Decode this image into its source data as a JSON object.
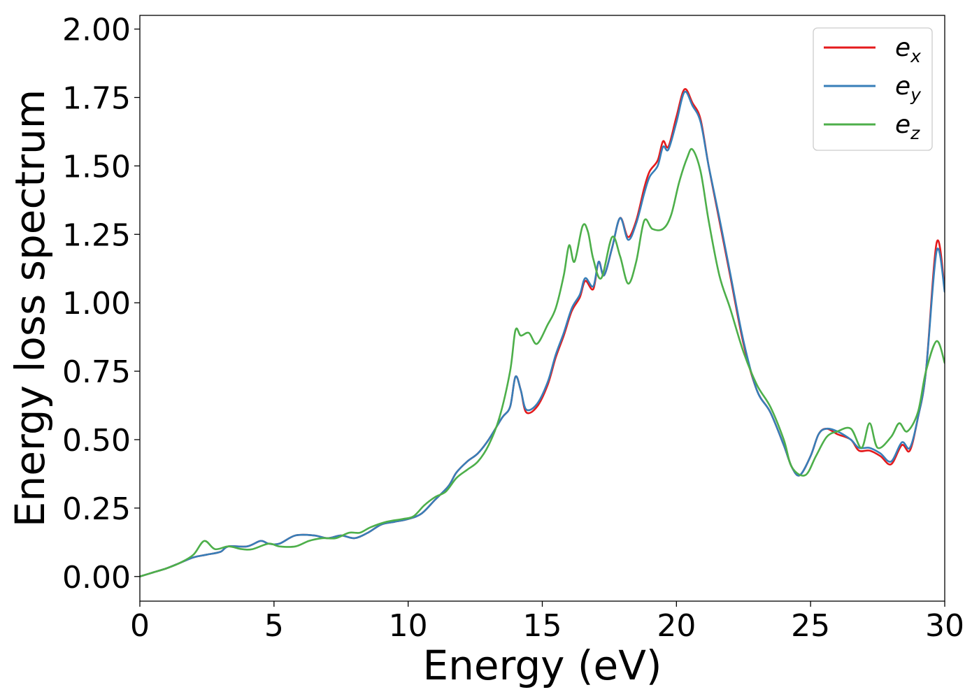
{
  "chart_data": {
    "type": "line",
    "title": "",
    "xlabel": "Energy (eV)",
    "ylabel": "Energy loss spectrum",
    "xlim": [
      0,
      30
    ],
    "ylim": [
      -0.09,
      2.05
    ],
    "x_ticks": [
      0,
      5,
      10,
      15,
      20,
      25,
      30
    ],
    "x_tick_labels": [
      "0",
      "5",
      "10",
      "15",
      "20",
      "25",
      "30"
    ],
    "y_ticks": [
      0.0,
      0.25,
      0.5,
      0.75,
      1.0,
      1.25,
      1.5,
      1.75,
      2.0
    ],
    "y_tick_labels": [
      "0.00",
      "0.25",
      "0.50",
      "0.75",
      "1.00",
      "1.25",
      "1.50",
      "1.75",
      "2.00"
    ],
    "grid": false,
    "legend_position": "top-right",
    "series": [
      {
        "name": "e_x",
        "legend_base": "e",
        "legend_sub": "x",
        "color": "#e41a1c",
        "points": [
          [
            0,
            0.0
          ],
          [
            0.5,
            0.015
          ],
          [
            1.0,
            0.03
          ],
          [
            1.5,
            0.05
          ],
          [
            2.0,
            0.07
          ],
          [
            2.5,
            0.08
          ],
          [
            3.0,
            0.09
          ],
          [
            3.3,
            0.11
          ],
          [
            4.0,
            0.11
          ],
          [
            4.5,
            0.13
          ],
          [
            4.8,
            0.12
          ],
          [
            5.2,
            0.12
          ],
          [
            5.8,
            0.15
          ],
          [
            6.5,
            0.15
          ],
          [
            7.0,
            0.14
          ],
          [
            7.5,
            0.15
          ],
          [
            8.0,
            0.14
          ],
          [
            8.5,
            0.16
          ],
          [
            9.0,
            0.19
          ],
          [
            9.5,
            0.2
          ],
          [
            10.0,
            0.21
          ],
          [
            10.5,
            0.23
          ],
          [
            11.0,
            0.28
          ],
          [
            11.5,
            0.33
          ],
          [
            11.8,
            0.38
          ],
          [
            12.2,
            0.42
          ],
          [
            12.6,
            0.45
          ],
          [
            13.0,
            0.5
          ],
          [
            13.5,
            0.58
          ],
          [
            13.8,
            0.62
          ],
          [
            14.0,
            0.73
          ],
          [
            14.2,
            0.68
          ],
          [
            14.4,
            0.6
          ],
          [
            14.8,
            0.62
          ],
          [
            15.2,
            0.7
          ],
          [
            15.5,
            0.8
          ],
          [
            15.8,
            0.88
          ],
          [
            16.1,
            0.97
          ],
          [
            16.4,
            1.02
          ],
          [
            16.6,
            1.08
          ],
          [
            16.9,
            1.05
          ],
          [
            17.1,
            1.15
          ],
          [
            17.3,
            1.1
          ],
          [
            17.6,
            1.2
          ],
          [
            17.9,
            1.31
          ],
          [
            18.2,
            1.24
          ],
          [
            18.5,
            1.3
          ],
          [
            18.8,
            1.42
          ],
          [
            19.0,
            1.48
          ],
          [
            19.3,
            1.52
          ],
          [
            19.5,
            1.59
          ],
          [
            19.7,
            1.57
          ],
          [
            20.0,
            1.68
          ],
          [
            20.3,
            1.78
          ],
          [
            20.6,
            1.73
          ],
          [
            20.9,
            1.67
          ],
          [
            21.2,
            1.5
          ],
          [
            21.6,
            1.3
          ],
          [
            22.0,
            1.1
          ],
          [
            22.5,
            0.85
          ],
          [
            23.0,
            0.68
          ],
          [
            23.5,
            0.6
          ],
          [
            24.0,
            0.48
          ],
          [
            24.3,
            0.4
          ],
          [
            24.6,
            0.37
          ],
          [
            25.0,
            0.44
          ],
          [
            25.3,
            0.52
          ],
          [
            25.6,
            0.54
          ],
          [
            26.0,
            0.52
          ],
          [
            26.5,
            0.5
          ],
          [
            26.8,
            0.46
          ],
          [
            27.2,
            0.46
          ],
          [
            27.6,
            0.44
          ],
          [
            28.0,
            0.41
          ],
          [
            28.4,
            0.48
          ],
          [
            28.7,
            0.46
          ],
          [
            29.0,
            0.58
          ],
          [
            29.3,
            0.75
          ],
          [
            29.7,
            1.22
          ],
          [
            30.0,
            1.05
          ]
        ]
      },
      {
        "name": "e_y",
        "legend_base": "e",
        "legend_sub": "y",
        "color": "#377eb8",
        "points": [
          [
            0,
            0.0
          ],
          [
            0.5,
            0.015
          ],
          [
            1.0,
            0.03
          ],
          [
            1.5,
            0.05
          ],
          [
            2.0,
            0.07
          ],
          [
            2.5,
            0.08
          ],
          [
            3.0,
            0.09
          ],
          [
            3.3,
            0.11
          ],
          [
            4.0,
            0.11
          ],
          [
            4.5,
            0.13
          ],
          [
            4.8,
            0.12
          ],
          [
            5.2,
            0.12
          ],
          [
            5.8,
            0.15
          ],
          [
            6.5,
            0.15
          ],
          [
            7.0,
            0.14
          ],
          [
            7.5,
            0.15
          ],
          [
            8.0,
            0.14
          ],
          [
            8.5,
            0.16
          ],
          [
            9.0,
            0.19
          ],
          [
            9.5,
            0.2
          ],
          [
            10.0,
            0.21
          ],
          [
            10.5,
            0.23
          ],
          [
            11.0,
            0.28
          ],
          [
            11.5,
            0.33
          ],
          [
            11.8,
            0.38
          ],
          [
            12.2,
            0.42
          ],
          [
            12.6,
            0.45
          ],
          [
            13.0,
            0.5
          ],
          [
            13.5,
            0.58
          ],
          [
            13.8,
            0.62
          ],
          [
            14.0,
            0.73
          ],
          [
            14.2,
            0.68
          ],
          [
            14.4,
            0.61
          ],
          [
            14.8,
            0.63
          ],
          [
            15.2,
            0.71
          ],
          [
            15.5,
            0.81
          ],
          [
            15.8,
            0.89
          ],
          [
            16.1,
            0.98
          ],
          [
            16.4,
            1.03
          ],
          [
            16.6,
            1.09
          ],
          [
            16.9,
            1.06
          ],
          [
            17.1,
            1.15
          ],
          [
            17.3,
            1.1
          ],
          [
            17.6,
            1.2
          ],
          [
            17.9,
            1.31
          ],
          [
            18.2,
            1.23
          ],
          [
            18.5,
            1.29
          ],
          [
            18.8,
            1.4
          ],
          [
            19.0,
            1.46
          ],
          [
            19.3,
            1.5
          ],
          [
            19.5,
            1.57
          ],
          [
            19.7,
            1.56
          ],
          [
            20.0,
            1.66
          ],
          [
            20.3,
            1.77
          ],
          [
            20.6,
            1.72
          ],
          [
            20.9,
            1.66
          ],
          [
            21.2,
            1.5
          ],
          [
            21.6,
            1.31
          ],
          [
            22.0,
            1.11
          ],
          [
            22.5,
            0.86
          ],
          [
            23.0,
            0.68
          ],
          [
            23.5,
            0.6
          ],
          [
            24.0,
            0.48
          ],
          [
            24.3,
            0.4
          ],
          [
            24.6,
            0.37
          ],
          [
            25.0,
            0.44
          ],
          [
            25.3,
            0.52
          ],
          [
            25.6,
            0.54
          ],
          [
            26.0,
            0.53
          ],
          [
            26.5,
            0.5
          ],
          [
            26.8,
            0.47
          ],
          [
            27.2,
            0.47
          ],
          [
            27.6,
            0.45
          ],
          [
            28.0,
            0.42
          ],
          [
            28.4,
            0.49
          ],
          [
            28.7,
            0.47
          ],
          [
            29.0,
            0.58
          ],
          [
            29.3,
            0.75
          ],
          [
            29.7,
            1.19
          ],
          [
            30.0,
            1.04
          ]
        ]
      },
      {
        "name": "e_z",
        "legend_base": "e",
        "legend_sub": "z",
        "color": "#4daf4a",
        "points": [
          [
            0,
            0.0
          ],
          [
            0.5,
            0.015
          ],
          [
            1.0,
            0.03
          ],
          [
            1.5,
            0.05
          ],
          [
            2.0,
            0.08
          ],
          [
            2.4,
            0.13
          ],
          [
            2.8,
            0.1
          ],
          [
            3.3,
            0.11
          ],
          [
            3.8,
            0.1
          ],
          [
            4.2,
            0.1
          ],
          [
            4.8,
            0.12
          ],
          [
            5.2,
            0.11
          ],
          [
            5.8,
            0.11
          ],
          [
            6.3,
            0.13
          ],
          [
            6.8,
            0.14
          ],
          [
            7.3,
            0.14
          ],
          [
            7.8,
            0.16
          ],
          [
            8.2,
            0.16
          ],
          [
            8.6,
            0.18
          ],
          [
            9.2,
            0.2
          ],
          [
            9.8,
            0.21
          ],
          [
            10.2,
            0.22
          ],
          [
            10.6,
            0.26
          ],
          [
            11.0,
            0.29
          ],
          [
            11.4,
            0.31
          ],
          [
            11.8,
            0.36
          ],
          [
            12.2,
            0.39
          ],
          [
            12.6,
            0.42
          ],
          [
            13.0,
            0.48
          ],
          [
            13.4,
            0.58
          ],
          [
            13.8,
            0.75
          ],
          [
            14.0,
            0.9
          ],
          [
            14.2,
            0.88
          ],
          [
            14.5,
            0.89
          ],
          [
            14.8,
            0.85
          ],
          [
            15.2,
            0.92
          ],
          [
            15.5,
            0.98
          ],
          [
            15.8,
            1.1
          ],
          [
            16.0,
            1.21
          ],
          [
            16.2,
            1.15
          ],
          [
            16.5,
            1.28
          ],
          [
            16.7,
            1.26
          ],
          [
            16.9,
            1.16
          ],
          [
            17.2,
            1.09
          ],
          [
            17.6,
            1.24
          ],
          [
            17.9,
            1.17
          ],
          [
            18.2,
            1.07
          ],
          [
            18.5,
            1.15
          ],
          [
            18.8,
            1.3
          ],
          [
            19.1,
            1.27
          ],
          [
            19.5,
            1.27
          ],
          [
            19.8,
            1.32
          ],
          [
            20.1,
            1.44
          ],
          [
            20.4,
            1.53
          ],
          [
            20.6,
            1.56
          ],
          [
            20.9,
            1.48
          ],
          [
            21.2,
            1.3
          ],
          [
            21.6,
            1.1
          ],
          [
            22.0,
            0.98
          ],
          [
            22.5,
            0.82
          ],
          [
            23.0,
            0.7
          ],
          [
            23.5,
            0.62
          ],
          [
            24.0,
            0.5
          ],
          [
            24.3,
            0.4
          ],
          [
            24.8,
            0.37
          ],
          [
            25.2,
            0.44
          ],
          [
            25.6,
            0.51
          ],
          [
            26.0,
            0.53
          ],
          [
            26.5,
            0.54
          ],
          [
            26.9,
            0.47
          ],
          [
            27.2,
            0.56
          ],
          [
            27.5,
            0.47
          ],
          [
            28.0,
            0.51
          ],
          [
            28.3,
            0.56
          ],
          [
            28.6,
            0.53
          ],
          [
            29.0,
            0.6
          ],
          [
            29.3,
            0.75
          ],
          [
            29.7,
            0.86
          ],
          [
            30.0,
            0.78
          ]
        ]
      }
    ]
  }
}
